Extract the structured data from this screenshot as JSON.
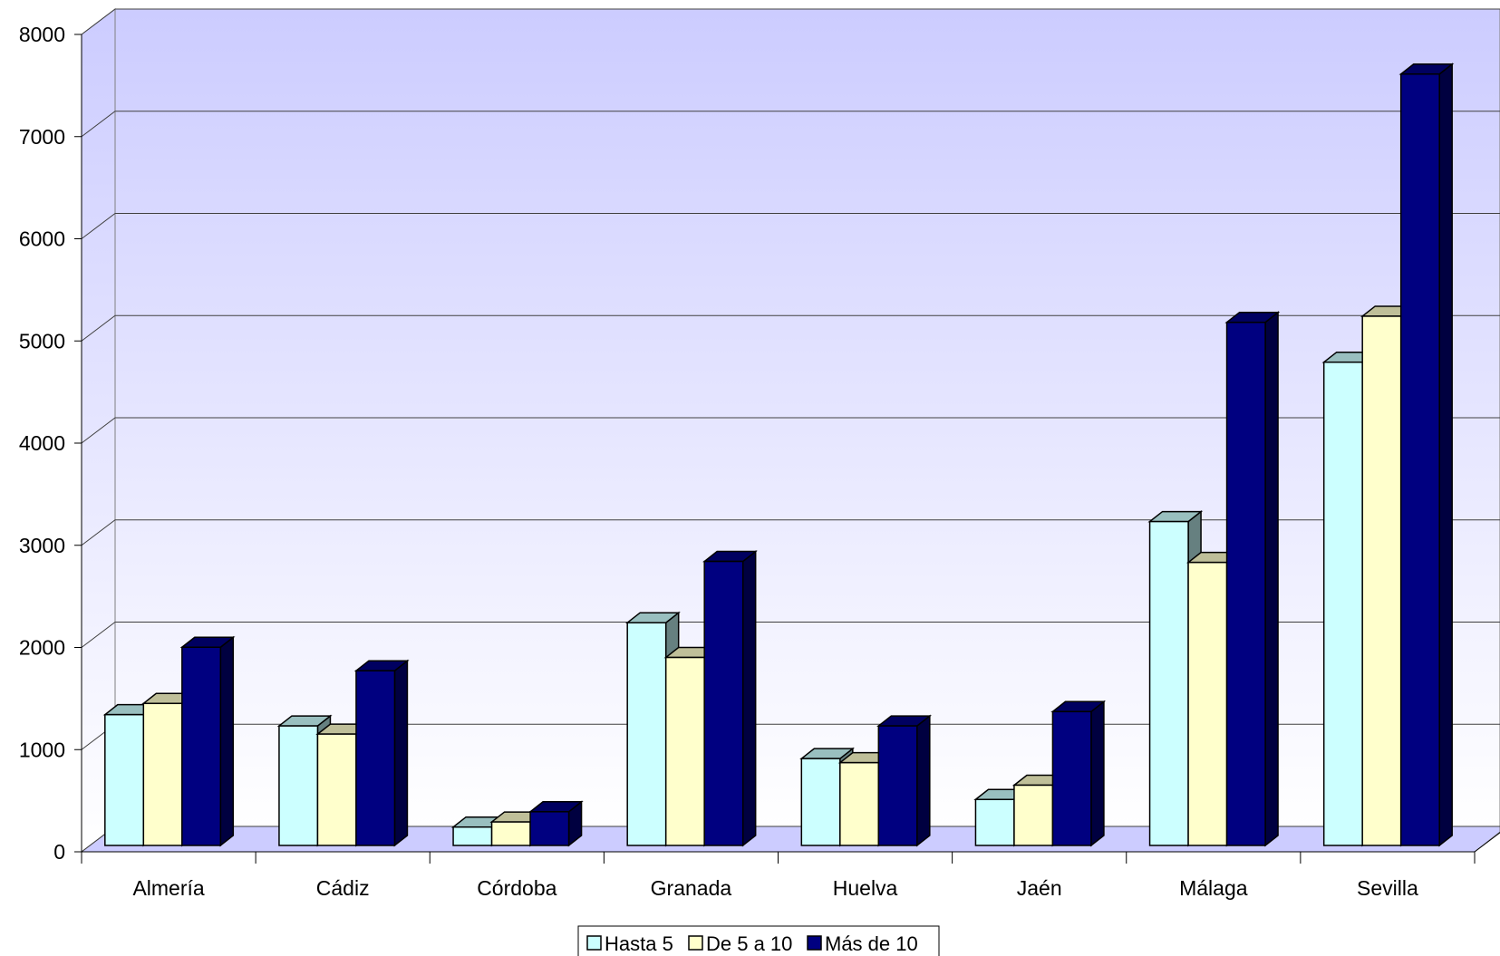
{
  "chart_data": {
    "type": "bar",
    "style": "3d-clustered-column",
    "title": "",
    "xlabel": "",
    "ylabel": "",
    "ylim": [
      0,
      8000
    ],
    "yticks": [
      0,
      1000,
      2000,
      3000,
      4000,
      5000,
      6000,
      7000,
      8000
    ],
    "grid": true,
    "legend_position": "bottom",
    "categories": [
      "Almería",
      "Cádiz",
      "Córdoba",
      "Granada",
      "Huelva",
      "Jaén",
      "Málaga",
      "Sevilla"
    ],
    "series": [
      {
        "name": "Hasta 5",
        "color": "#CCFFFF",
        "values": [
          1280,
          1170,
          180,
          2180,
          850,
          450,
          3170,
          4730
        ]
      },
      {
        "name": "De 5 a 10",
        "color": "#FFFFCC",
        "values": [
          1390,
          1090,
          230,
          1840,
          810,
          590,
          2770,
          5180
        ]
      },
      {
        "name": "Más de 10",
        "color": "#000080",
        "values": [
          1940,
          1710,
          330,
          2780,
          1170,
          1310,
          5120,
          7550
        ]
      }
    ],
    "colors": {
      "wall_top": "#CCCCFF",
      "wall_bottom": "#FFFFFF",
      "floor": "#CCCCFF"
    }
  }
}
